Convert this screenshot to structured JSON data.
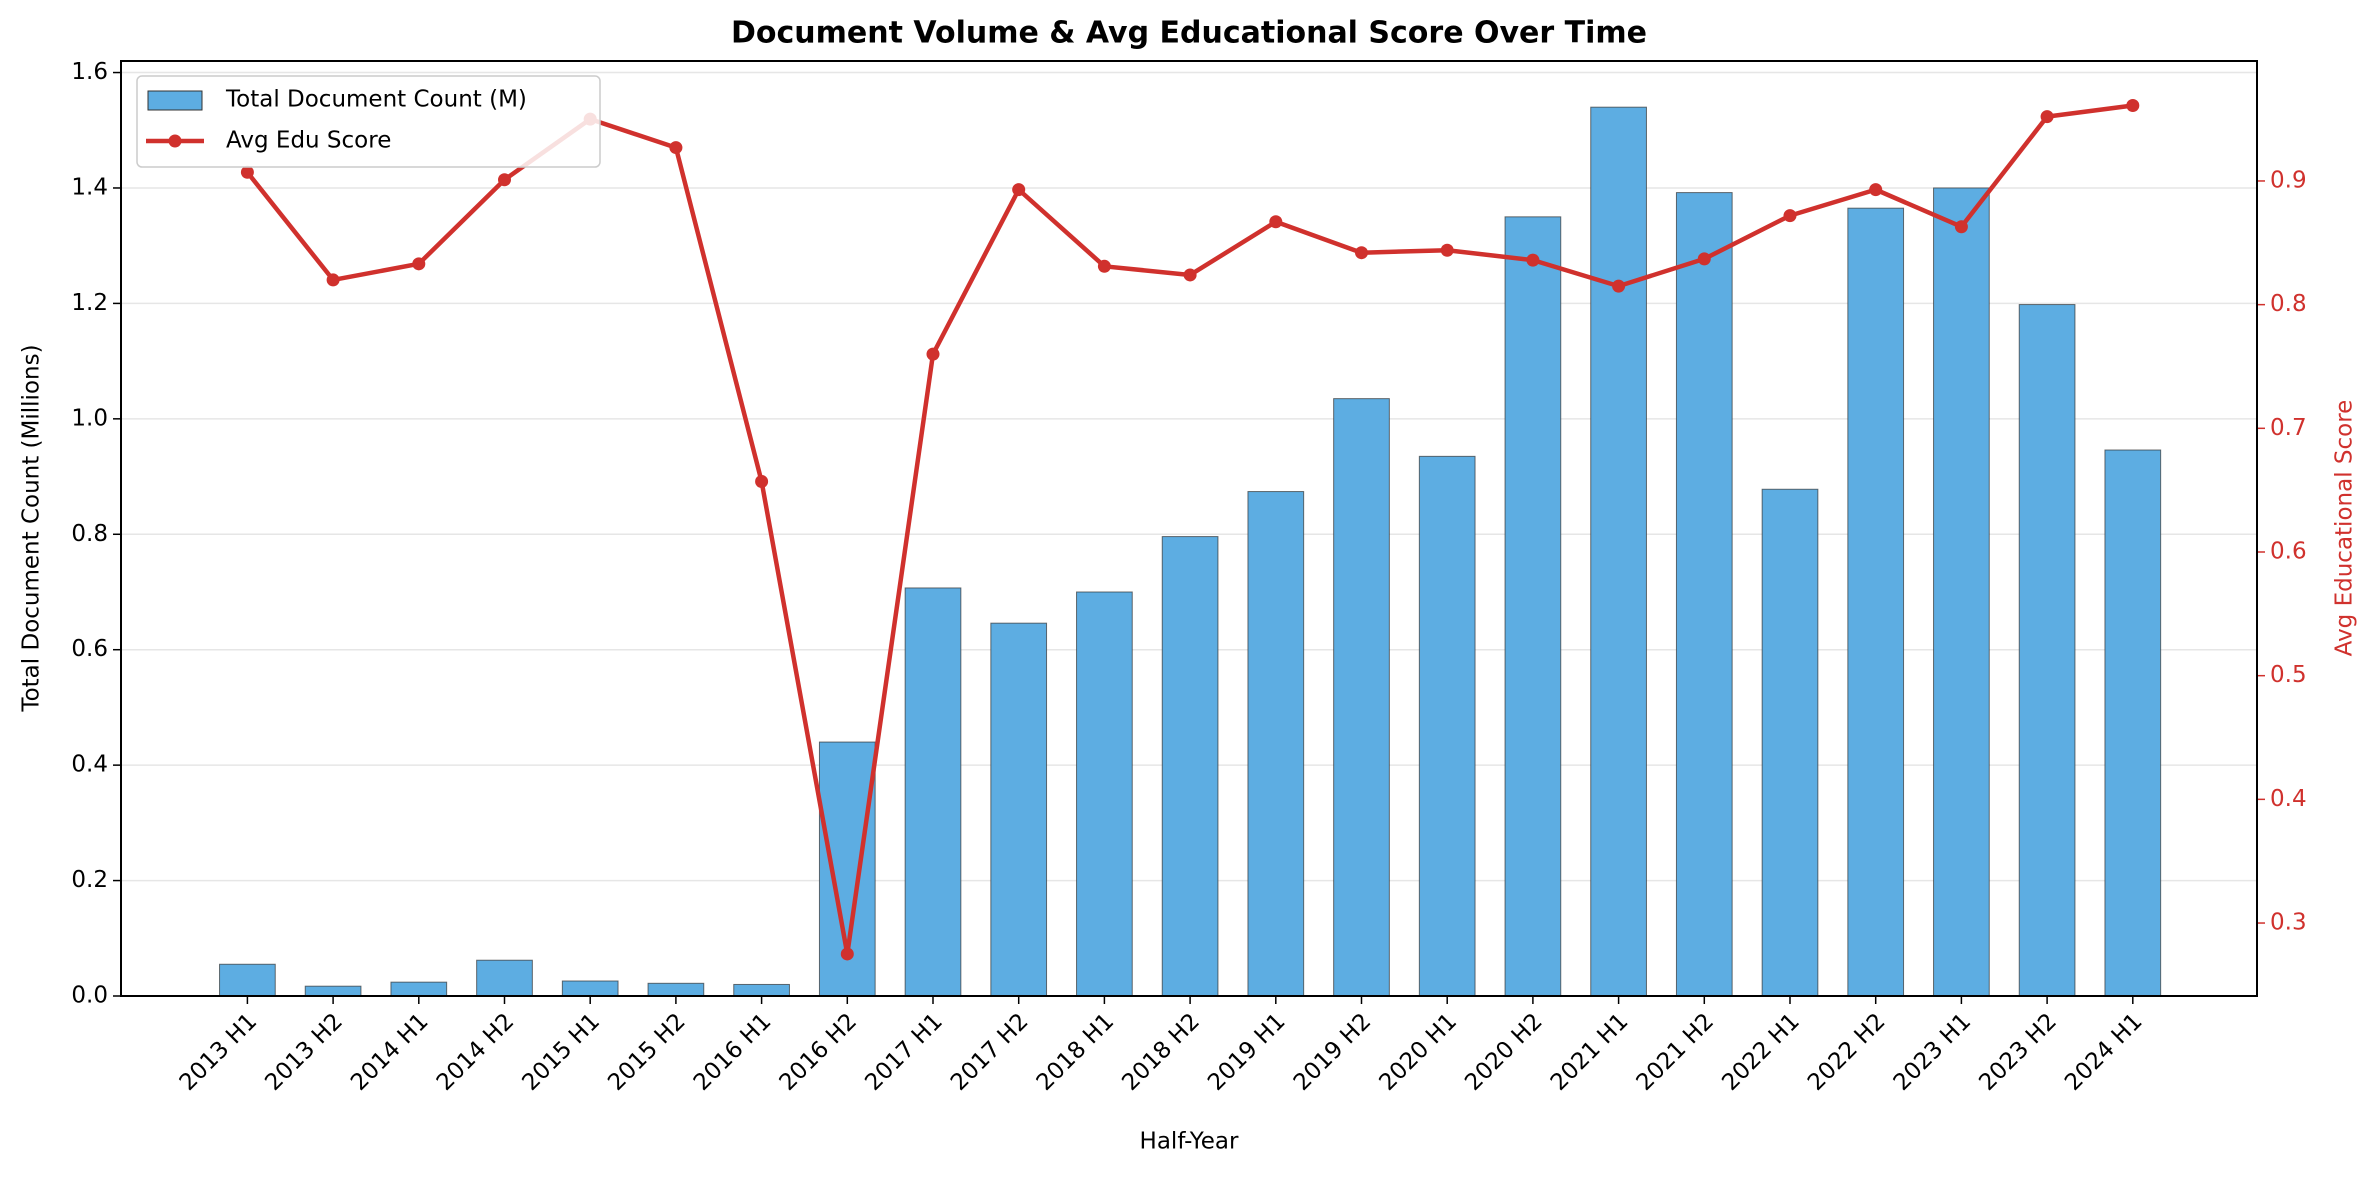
{
  "chart_data": {
    "type": "bar_line",
    "title": "Document Volume & Avg Educational Score Over Time",
    "xlabel": "Half-Year",
    "ylabel": "Total Document Count (Millions)",
    "y2label": "Avg Educational Score",
    "categories": [
      "2013 H1",
      "2013 H2",
      "2014 H1",
      "2014 H2",
      "2015 H1",
      "2015 H2",
      "2016 H1",
      "2016 H2",
      "2017 H1",
      "2017 H2",
      "2018 H1",
      "2018 H2",
      "2019 H1",
      "2019 H2",
      "2020 H1",
      "2020 H2",
      "2021 H1",
      "2021 H2",
      "2022 H1",
      "2022 H2",
      "2023 H1",
      "2023 H2",
      "2024 H1"
    ],
    "series": [
      {
        "name": "Total Document Count (M)",
        "type": "bar",
        "color": "#5dade2",
        "values": [
          0.055,
          0.017,
          0.024,
          0.062,
          0.026,
          0.022,
          0.02,
          0.44,
          0.707,
          0.646,
          0.7,
          0.796,
          0.874,
          1.035,
          0.935,
          1.35,
          1.54,
          1.392,
          0.878,
          1.365,
          1.4,
          1.198,
          0.946
        ]
      },
      {
        "name": "Avg Edu Score",
        "type": "line",
        "axis": "y2",
        "color": "#d0312d",
        "values": [
          0.907,
          0.82,
          0.833,
          0.901,
          0.95,
          0.927,
          0.657,
          0.275,
          0.76,
          0.893,
          0.831,
          0.824,
          0.867,
          0.842,
          0.844,
          0.836,
          0.815,
          0.837,
          0.872,
          0.893,
          0.863,
          0.952,
          0.961
        ]
      }
    ],
    "ylim": [
      0,
      1.62
    ],
    "yticks": [
      {
        "value": 0,
        "label": "0.0"
      },
      0.2,
      0.4,
      0.6,
      0.8,
      {
        "value": 1,
        "label": "1.0"
      },
      1.2,
      1.4,
      1.6
    ],
    "y2lim": [
      0.241,
      0.997
    ],
    "y2ticks": [
      0.3,
      0.4,
      0.5,
      0.6,
      0.7,
      0.8,
      0.9
    ],
    "grid": true,
    "legend": "upper left"
  }
}
